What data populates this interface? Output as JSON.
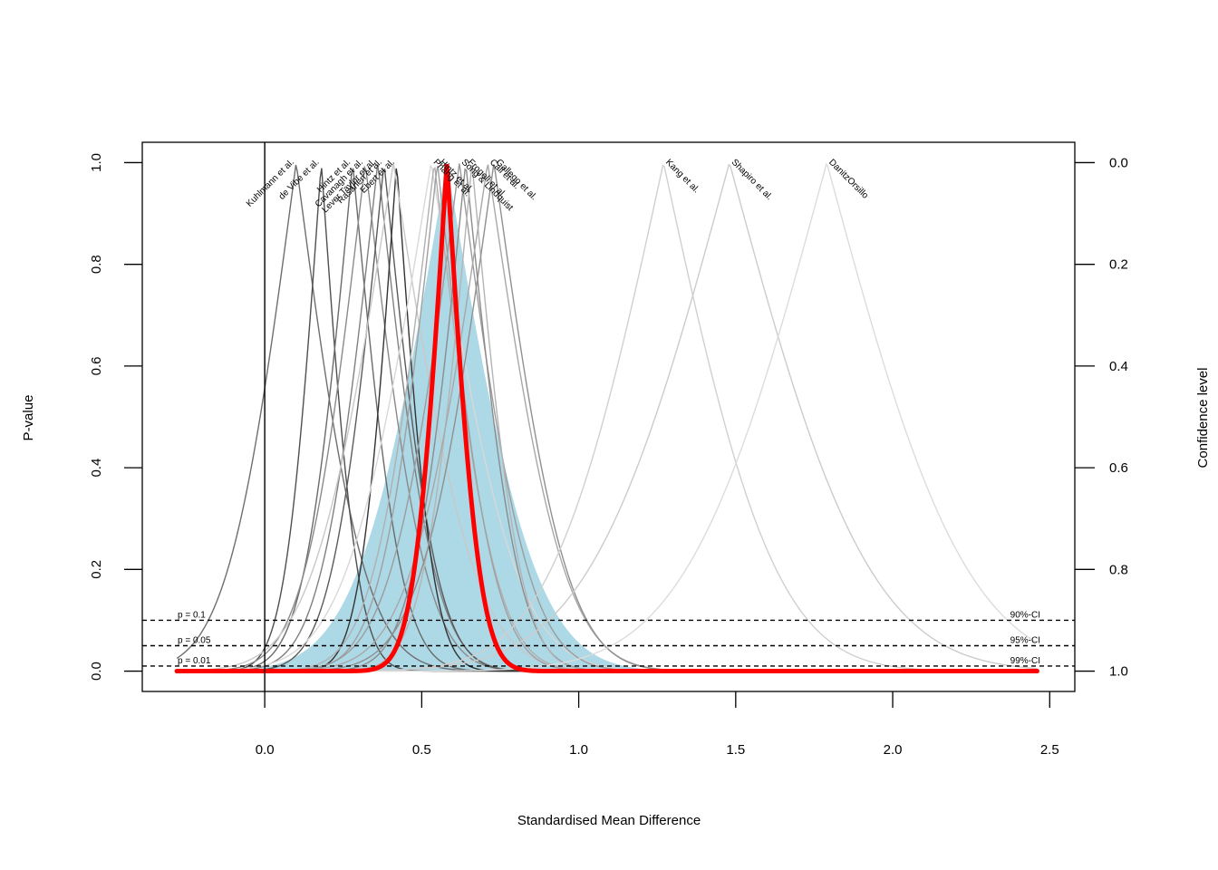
{
  "chart_data": {
    "type": "line",
    "subtype": "p-value function (drapery) plot",
    "xlabel": "Standardised Mean Difference",
    "ylabel": "P-value",
    "y2label": "Confidence level",
    "xlim": [
      -0.39,
      2.58
    ],
    "ylim": [
      -0.04,
      1.04
    ],
    "x_ticks": [
      "0.0",
      "0.5",
      "1.0",
      "1.5",
      "2.0",
      "2.5"
    ],
    "y_ticks": [
      "0.0",
      "0.2",
      "0.4",
      "0.6",
      "0.8",
      "1.0"
    ],
    "y2_ticks": [
      "1.0",
      "0.8",
      "0.6",
      "0.4",
      "0.2",
      "0.0"
    ],
    "zero_line_x": 0.0,
    "reference_lines": [
      {
        "p": 0.1,
        "left_label": "p = 0.1",
        "right_label": "90%-CI"
      },
      {
        "p": 0.05,
        "left_label": "p = 0.05",
        "right_label": "95%-CI"
      },
      {
        "p": 0.01,
        "left_label": "p = 0.01",
        "right_label": "99%-CI"
      }
    ],
    "pooled_estimate": {
      "estimate": 0.58,
      "se": 0.081,
      "color": "#ff0000",
      "x_range": [
        -0.28,
        2.46
      ]
    },
    "prediction_region": {
      "estimate": 0.58,
      "se": 0.22,
      "color": "#add8e6",
      "x_range": [
        -0.28,
        1.45
      ]
    },
    "x_range": [
      -0.28,
      2.46
    ],
    "studies": [
      {
        "label": "Kuhlmann et al.",
        "estimate": 0.1,
        "se": 0.17,
        "color": "#6e6e6e"
      },
      {
        "label": "de Vibe et al.",
        "estimate": 0.18,
        "se": 0.09,
        "color": "#4f4f4f"
      },
      {
        "label": "Hintz et al.",
        "estimate": 0.28,
        "se": 0.12,
        "color": "#6a6a6a"
      },
      {
        "label": "Cavanagh et al.",
        "estimate": 0.32,
        "se": 0.15,
        "color": "#8a8a8a"
      },
      {
        "label": "Lever Taylor et al.",
        "estimate": 0.36,
        "se": 0.14,
        "color": "#808080"
      },
      {
        "label": "Rasanen et al.",
        "estimate": 0.38,
        "se": 0.13,
        "color": "#5a5a5a"
      },
      {
        "label": "Ebert et al.",
        "estimate": 0.42,
        "se": 0.09,
        "color": "#333333"
      },
      {
        "label": "Frazier et al.",
        "estimate": 0.41,
        "se": 0.2,
        "color": "#c8c8c8"
      },
      {
        "label": "Phang et al.",
        "estimate": 0.53,
        "se": 0.21,
        "color": "#d8d8d8"
      },
      {
        "label": "Rasanen et al.",
        "estimate": 0.54,
        "se": 0.15,
        "color": "#b0b0b0"
      },
      {
        "label": "Hintz et al.",
        "estimate": 0.55,
        "se": 0.14,
        "color": "#a0a0a0"
      },
      {
        "label": "Song & Lindquist",
        "estimate": 0.62,
        "se": 0.17,
        "color": "#9c9c9c"
      },
      {
        "label": "Frogeli et al.",
        "estimate": 0.64,
        "se": 0.13,
        "color": "#8c8c8c"
      },
      {
        "label": "Lever et al.",
        "estimate": 0.66,
        "se": 0.12,
        "color": "#b4b4b4"
      },
      {
        "label": "Call et al.",
        "estimate": 0.71,
        "se": 0.19,
        "color": "#a8a8a8"
      },
      {
        "label": "Gallego et al.",
        "estimate": 0.73,
        "se": 0.18,
        "color": "#909090"
      },
      {
        "label": "Kang et al.",
        "estimate": 1.27,
        "se": 0.28,
        "color": "#d0d0d0"
      },
      {
        "label": "Shapiro et al.",
        "estimate": 1.48,
        "se": 0.35,
        "color": "#cccccc"
      },
      {
        "label": "DanitzOrsillo",
        "estimate": 1.79,
        "se": 0.35,
        "color": "#dcdcdc"
      }
    ],
    "visible_study_labels": [
      {
        "text": "Kuhlmann et al.",
        "at_x": 0.1
      },
      {
        "text": "de Vibe et al.",
        "at_x": 0.18
      },
      {
        "text": "Hintz et al.",
        "at_x": 0.28
      },
      {
        "text": "Cavanagh et al.",
        "at_x": 0.32
      },
      {
        "text": "Lever Taylor et al.",
        "at_x": 0.36
      },
      {
        "text": "Rasanen et al.",
        "at_x": 0.38
      },
      {
        "text": "Ebert et al.",
        "at_x": 0.42
      },
      {
        "text": "Phang et al.",
        "at_x": 0.53
      },
      {
        "text": "Hintz et al.",
        "at_x": 0.55
      },
      {
        "text": "Frogeli et al.",
        "at_x": 0.64
      },
      {
        "text": "Song & Lindquist",
        "at_x": 0.62
      },
      {
        "text": "Call et al.",
        "at_x": 0.71
      },
      {
        "text": "Gallego et al.",
        "at_x": 0.73
      },
      {
        "text": "Kang et al.",
        "at_x": 1.27
      },
      {
        "text": "Shapiro et al.",
        "at_x": 1.48
      },
      {
        "text": "DanitzOrsillo",
        "at_x": 1.79
      }
    ]
  }
}
